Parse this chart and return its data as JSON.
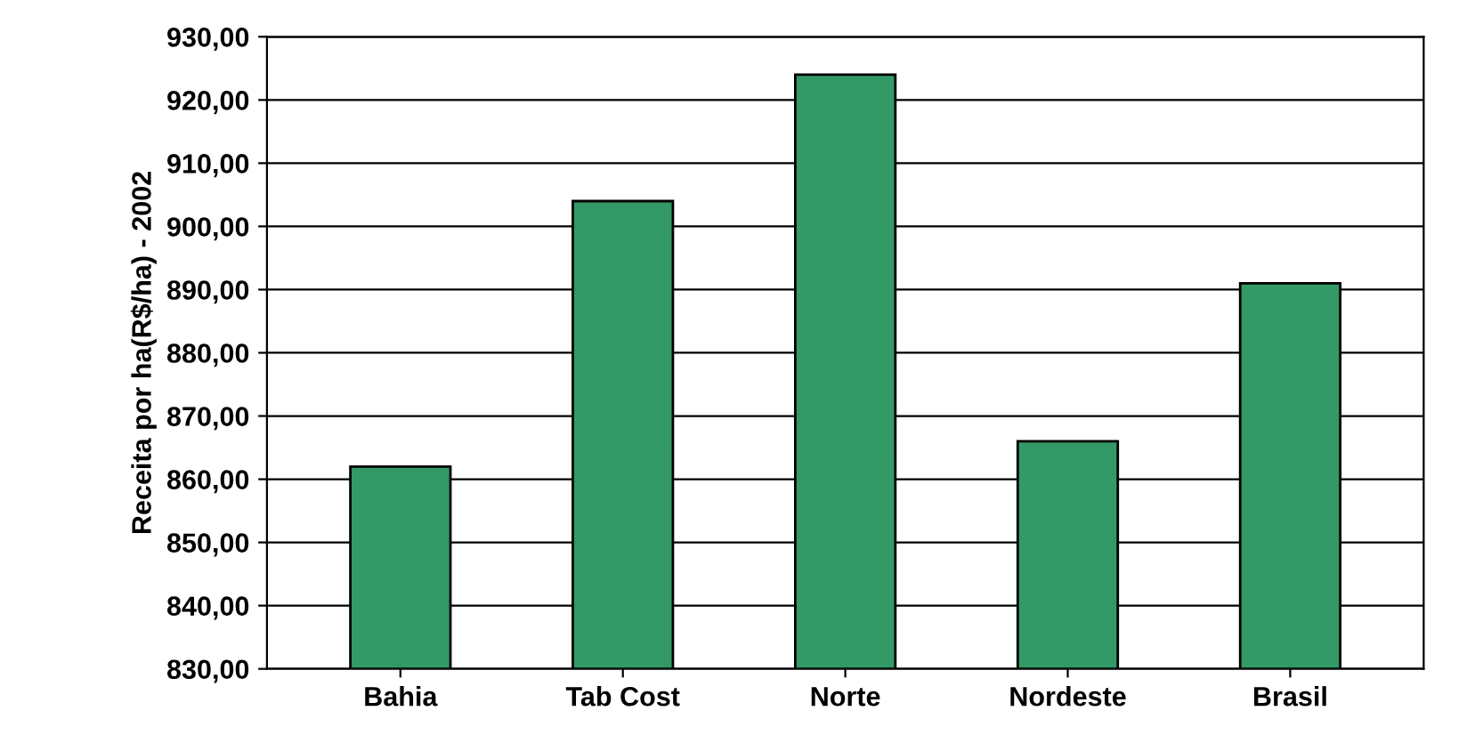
{
  "chart_data": {
    "type": "bar",
    "ylabel": "Receita por ha(R$/ha) - 2002",
    "categories": [
      "Bahia",
      "Tab Cost",
      "Norte",
      "Nordeste",
      "Brasil"
    ],
    "values": [
      862,
      904,
      924,
      866,
      891
    ],
    "color": "#339966",
    "ylim": [
      830,
      930
    ],
    "yticks": [
      {
        "value": 830,
        "label": "830,00"
      },
      {
        "value": 840,
        "label": "840,00"
      },
      {
        "value": 850,
        "label": "850,00"
      },
      {
        "value": 860,
        "label": "860,00"
      },
      {
        "value": 870,
        "label": "870,00"
      },
      {
        "value": 880,
        "label": "880,00"
      },
      {
        "value": 890,
        "label": "890,00"
      },
      {
        "value": 900,
        "label": "900,00"
      },
      {
        "value": 910,
        "label": "910,00"
      },
      {
        "value": 920,
        "label": "920,00"
      },
      {
        "value": 930,
        "label": "930,00"
      }
    ],
    "grid": "y"
  }
}
